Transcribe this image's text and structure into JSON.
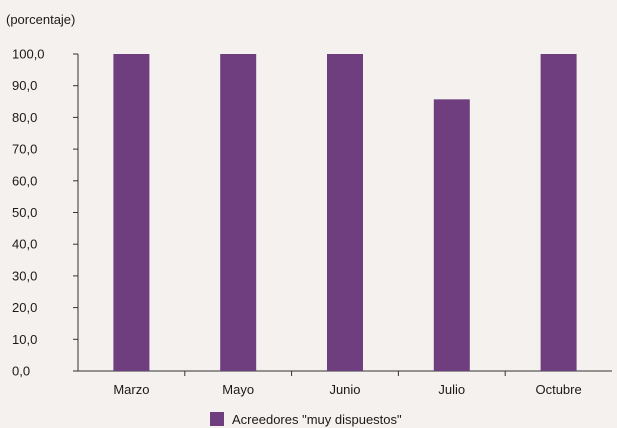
{
  "chart_data": {
    "type": "bar",
    "ylabel": "(porcentaje)",
    "categories": [
      "Marzo",
      "Mayo",
      "Junio",
      "Julio",
      "Octubre"
    ],
    "series": [
      {
        "name": "Acreedores \"muy dispuestos\"",
        "color": "#6e3e7f",
        "values": [
          100.0,
          100.0,
          100.0,
          85.7,
          100.0
        ]
      }
    ],
    "ylim": [
      0,
      100
    ],
    "yticks": [
      "0,0",
      "10,0",
      "20,0",
      "30,0",
      "40,0",
      "50,0",
      "60,0",
      "70,0",
      "80,0",
      "90,0",
      "100,0"
    ],
    "grid": false,
    "legend_position": "bottom-center"
  }
}
